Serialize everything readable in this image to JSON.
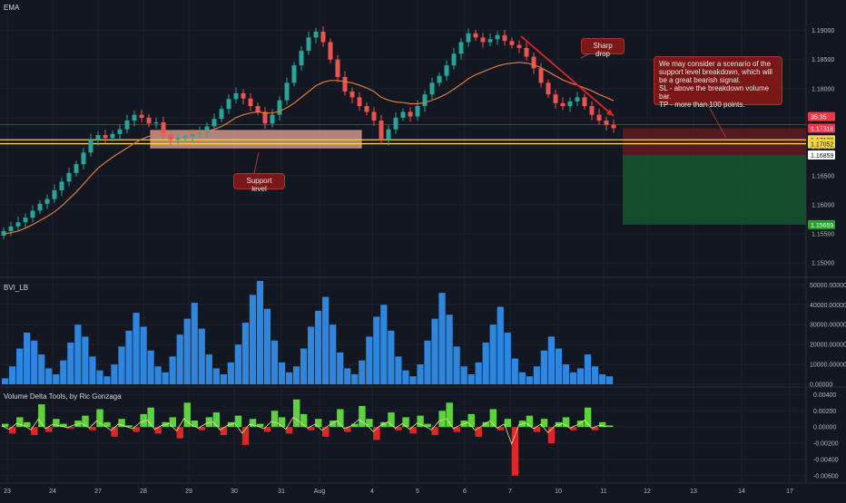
{
  "panes": {
    "main_label": "EMA",
    "bvi_label": "BVI_LB",
    "vdt_label": "Volume Delta Tools, by Ric Gonzaga"
  },
  "annotations": {
    "sharp_drop": "Sharp drop",
    "support_level": "Support level",
    "scenario_lines": [
      "We may consider a scenario of the",
      "support level breakdown, which will",
      "be a great bearish signal.",
      "SL - above the breakdown volume bar.",
      "TP - more than 100 points."
    ]
  },
  "price_axis": {
    "ticks": [
      "1.19000",
      "1.18500",
      "1.18000",
      "1.17500",
      "1.17000",
      "1.16500",
      "1.16000",
      "1.15500",
      "1.15000"
    ],
    "badges": [
      {
        "text": "35:35",
        "color": "#f23645"
      },
      {
        "text": "1.17318",
        "color": "#f23645"
      },
      {
        "text": "1.17120",
        "color": "#f5d547"
      },
      {
        "text": "1.17052",
        "color": "#f5d547"
      },
      {
        "text": "1.16859",
        "color": "#ffffff"
      },
      {
        "text": "1.15659",
        "color": "#1ea81e"
      }
    ]
  },
  "bvi_axis": {
    "ticks": [
      "50000.00000",
      "40000.00000",
      "30000.00000",
      "20000.00000",
      "10000.00000",
      "0.00000"
    ]
  },
  "vdt_axis": {
    "ticks": [
      "0.00400",
      "0.00200",
      "0.00000",
      "-0.00200",
      "-0.00400",
      "-0.00600"
    ]
  },
  "time_axis": {
    "labels": [
      "23",
      "24",
      "27",
      "28",
      "29",
      "30",
      "31",
      "Aug",
      "4",
      "5",
      "6",
      "7",
      "10",
      "11",
      "12",
      "13",
      "14",
      "17"
    ]
  },
  "colors": {
    "background": "#131722",
    "up": "#26a69a",
    "down": "#ef5350",
    "ema": "#e07a3a",
    "support_line": "#f5d547",
    "support_zone": "#e8a79b",
    "stop_zone": "#5a1a22",
    "target_zone": "#14532d",
    "volume_bar": "#2e86de",
    "delta_up": "#5ad43a",
    "delta_down": "#e02525",
    "annotation": "#8b1d1d"
  },
  "chart_data": [
    {
      "type": "candlestick",
      "title": "EMA",
      "ylim": [
        1.148,
        1.194
      ],
      "x_labels": [
        "23",
        "24",
        "27",
        "28",
        "29",
        "30",
        "31",
        "Aug",
        "4",
        "5",
        "6",
        "7",
        "10",
        "11"
      ],
      "closes": [
        1.1555,
        1.1563,
        1.157,
        1.1578,
        1.159,
        1.1602,
        1.161,
        1.1625,
        1.164,
        1.1655,
        1.167,
        1.169,
        1.1712,
        1.172,
        1.1715,
        1.1722,
        1.173,
        1.1745,
        1.1755,
        1.175,
        1.174,
        1.1742,
        1.172,
        1.1712,
        1.1715,
        1.1718,
        1.1722,
        1.1725,
        1.1735,
        1.1748,
        1.1765,
        1.1782,
        1.1792,
        1.1783,
        1.177,
        1.176,
        1.174,
        1.1755,
        1.178,
        1.181,
        1.184,
        1.1865,
        1.1888,
        1.1898,
        1.188,
        1.185,
        1.182,
        1.1795,
        1.1785,
        1.177,
        1.176,
        1.1745,
        1.1712,
        1.173,
        1.175,
        1.176,
        1.1752,
        1.177,
        1.179,
        1.181,
        1.1822,
        1.184,
        1.186,
        1.188,
        1.1895,
        1.1888,
        1.188,
        1.1885,
        1.1892,
        1.1882,
        1.1875,
        1.187,
        1.1855,
        1.1835,
        1.181,
        1.179,
        1.1775,
        1.177,
        1.1778,
        1.1785,
        1.177,
        1.1755,
        1.1745,
        1.1738,
        1.1732
      ],
      "ema": [
        1.155,
        1.1552,
        1.1555,
        1.156,
        1.1566,
        1.1573,
        1.158,
        1.1588,
        1.1598,
        1.161,
        1.1622,
        1.1636,
        1.165,
        1.1663,
        1.1673,
        1.1682,
        1.169,
        1.1698,
        1.1706,
        1.1713,
        1.1718,
        1.1722,
        1.1722,
        1.1722,
        1.1722,
        1.1723,
        1.1724,
        1.1725,
        1.1727,
        1.173,
        1.1735,
        1.1742,
        1.175,
        1.1755,
        1.1758,
        1.176,
        1.1758,
        1.1758,
        1.1761,
        1.1767,
        1.1775,
        1.1785,
        1.1795,
        1.1805,
        1.1811,
        1.1814,
        1.1814,
        1.1812,
        1.181,
        1.1806,
        1.1801,
        1.1795,
        1.1785,
        1.178,
        1.1777,
        1.1776,
        1.1774,
        1.1774,
        1.1776,
        1.178,
        1.1785,
        1.1791,
        1.1799,
        1.1808,
        1.1817,
        1.1824,
        1.1829,
        1.1834,
        1.1839,
        1.1842,
        1.1844,
        1.1845,
        1.1844,
        1.1841,
        1.1836,
        1.1829,
        1.1822,
        1.1815,
        1.181,
        1.1806,
        1.1801,
        1.1796,
        1.179,
        1.1785,
        1.1779
      ],
      "support_lines": [
        1.1712,
        1.17052
      ],
      "stop_level": 1.17318,
      "entry_level": 1.16859,
      "target_level": 1.15659
    },
    {
      "type": "bar",
      "title": "BVI_LB",
      "ylim": [
        0,
        52000
      ],
      "values": [
        3000,
        9000,
        18000,
        26000,
        22000,
        15000,
        8000,
        5000,
        12000,
        21000,
        30000,
        24000,
        14000,
        7000,
        4000,
        10000,
        19000,
        27000,
        36000,
        29000,
        17000,
        9000,
        6000,
        14000,
        25000,
        33000,
        41000,
        28000,
        15000,
        8000,
        5000,
        11000,
        20000,
        31000,
        45000,
        52000,
        38000,
        22000,
        11000,
        6000,
        9000,
        18000,
        29000,
        37000,
        44000,
        30000,
        16000,
        8000,
        5000,
        12000,
        24000,
        34000,
        40000,
        27000,
        14000,
        7000,
        4000,
        10000,
        22000,
        33000,
        46000,
        35000,
        19000,
        9000,
        5000,
        11000,
        21000,
        30000,
        39000,
        26000,
        13000,
        6000,
        4000,
        9000,
        17000,
        24000,
        18000,
        10000,
        6000,
        8000,
        15000,
        9000,
        5000,
        4000
      ]
    },
    {
      "type": "area",
      "title": "Volume Delta Tools, by Ric Gonzaga",
      "ylim": [
        -0.0068,
        0.0046
      ],
      "values": [
        0.0004,
        -0.0008,
        0.0012,
        0.0006,
        -0.001,
        0.0028,
        -0.0006,
        0.001,
        0.0004,
        -0.0002,
        0.0008,
        0.0014,
        -0.0004,
        0.0022,
        0.0006,
        -0.0012,
        0.001,
        0.0002,
        -0.0006,
        0.0016,
        0.0024,
        -0.0008,
        0.0006,
        0.0012,
        -0.0014,
        0.003,
        0.0008,
        -0.0004,
        0.0012,
        0.0018,
        -0.001,
        0.0006,
        0.0014,
        -0.0022,
        0.001,
        0.0004,
        -0.0006,
        0.002,
        0.0012,
        -0.0008,
        0.0034,
        0.0016,
        -0.0004,
        0.001,
        -0.0012,
        0.0008,
        0.0022,
        -0.0006,
        0.0004,
        0.0026,
        0.001,
        -0.0016,
        0.0006,
        0.0018,
        -0.0004,
        0.0012,
        -0.0008,
        0.0014,
        0.0004,
        -0.001,
        0.002,
        0.003,
        -0.0006,
        0.0008,
        0.0016,
        -0.0012,
        0.0006,
        0.0022,
        -0.0004,
        0.001,
        -0.006,
        0.0008,
        0.0014,
        -0.0006,
        0.001,
        -0.002,
        0.0006,
        0.0012,
        -0.0004,
        0.0008,
        0.0024,
        -0.0004,
        0.0006,
        0.0002
      ]
    }
  ]
}
